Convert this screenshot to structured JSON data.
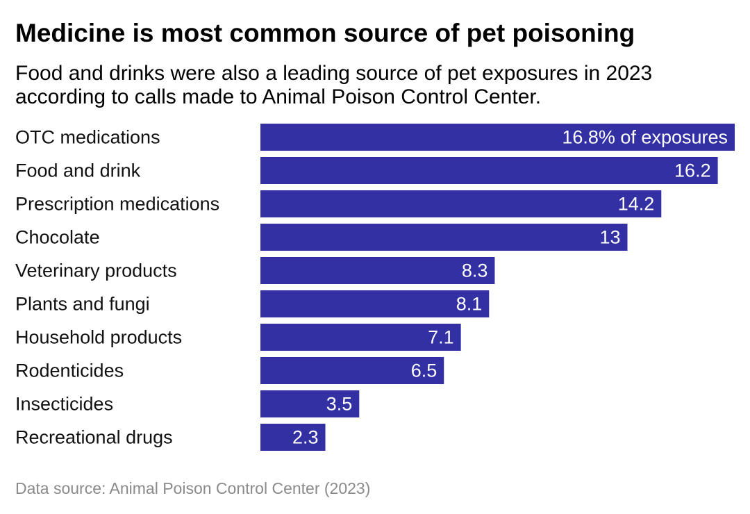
{
  "chart_data": {
    "type": "bar",
    "orientation": "horizontal",
    "title": "Medicine is most common source of pet poisoning",
    "subtitle": "Food and drinks were also a leading source of pet exposures in 2023 according to calls made to Animal Poison Control Center.",
    "xlabel": "",
    "ylabel": "",
    "value_unit_label": "% of exposures",
    "categories": [
      "OTC medications",
      "Food and drink",
      "Prescription medications",
      "Chocolate",
      "Veterinary products",
      "Plants and fungi",
      "Household products",
      "Rodenticides",
      "Insecticides",
      "Recreational drugs"
    ],
    "values": [
      16.8,
      16.2,
      14.2,
      13,
      8.3,
      8.1,
      7.1,
      6.5,
      3.5,
      2.3
    ],
    "value_labels": [
      "16.8% of exposures",
      "16.2",
      "14.2",
      "13",
      "8.3",
      "8.1",
      "7.1",
      "6.5",
      "3.5",
      "2.3"
    ],
    "xlim": [
      0,
      16.8
    ],
    "grid": false,
    "legend": "none",
    "bar_color": "#3330a3",
    "value_label_color": "#ffffff",
    "source": "Data source: Animal Poison Control Center (2023)"
  }
}
